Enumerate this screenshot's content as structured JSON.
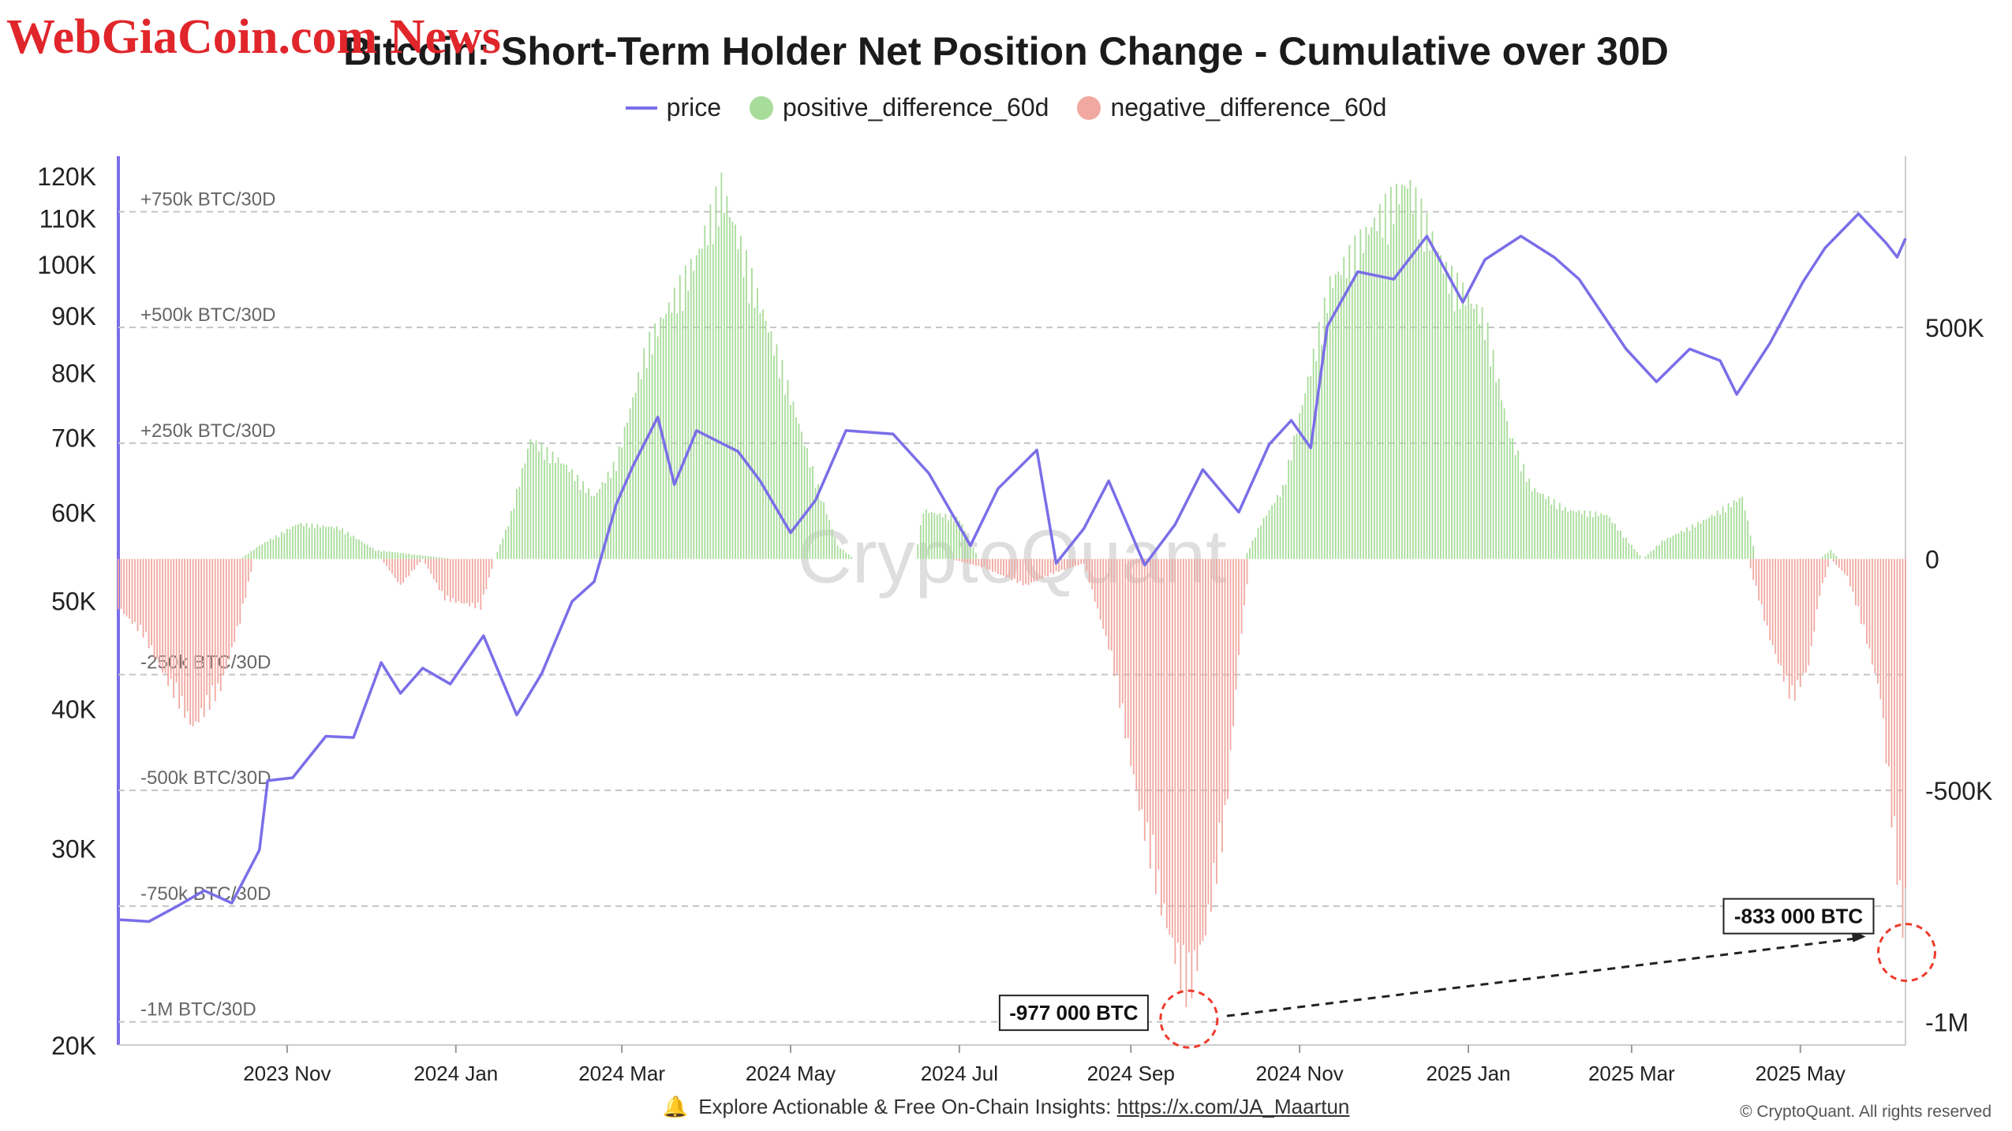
{
  "watermark": "WebGiaCoin.com News",
  "title": "Bitcoin: Short-Term Holder Net Position Change - Cumulative over 30D",
  "legend": [
    {
      "name": "price",
      "color": "#7b6ee8",
      "kind": "line"
    },
    {
      "name": "positive_difference_60d",
      "color": "#a8dc9a",
      "kind": "dot"
    },
    {
      "name": "negative_difference_60d",
      "color": "#f0a8a0",
      "kind": "dot"
    }
  ],
  "footer": {
    "icon": "bell-icon",
    "text": "Explore Actionable & Free On-Chain Insights:",
    "link": "https://x.com/JA_Maartun"
  },
  "copyright": "© CryptoQuant. All rights reserved",
  "chart_data": {
    "type": "bar",
    "watermark_text": "CryptoQuant",
    "x_ticks": [
      "2023 Nov",
      "2024 Jan",
      "2024 Mar",
      "2024 May",
      "2024 Jul",
      "2024 Sep",
      "2024 Nov",
      "2025 Jan",
      "2025 Mar",
      "2025 May"
    ],
    "x_range": [
      "2023-09-01",
      "2025-06-08"
    ],
    "y_left": {
      "scale": "log",
      "range": [
        20000,
        125000
      ],
      "ticks": [
        "20K",
        "30K",
        "40K",
        "50K",
        "60K",
        "70K",
        "80K",
        "90K",
        "100K",
        "110K",
        "120K"
      ],
      "tick_values": [
        20000,
        30000,
        40000,
        50000,
        60000,
        70000,
        80000,
        90000,
        100000,
        110000,
        120000
      ]
    },
    "y_right": {
      "range": [
        -1050000,
        870000
      ],
      "ticks": [
        "500K",
        "0",
        "-500K",
        "-1M"
      ],
      "tick_values": [
        500000,
        0,
        -500000,
        -1000000
      ]
    },
    "reference_lines": [
      {
        "value": 750000,
        "label": "+750k BTC/30D"
      },
      {
        "value": 500000,
        "label": "+500k BTC/30D"
      },
      {
        "value": 250000,
        "label": "+250k BTC/30D"
      },
      {
        "value": -250000,
        "label": "-250k BTC/30D"
      },
      {
        "value": -500000,
        "label": "-500k BTC/30D"
      },
      {
        "value": -750000,
        "label": "-750k BTC/30D"
      },
      {
        "value": -1000000,
        "label": "-1M BTC/30D"
      }
    ],
    "annotations": [
      {
        "label": "-977 000 BTC",
        "date": "2024-09-22",
        "value": -977000
      },
      {
        "label": "-833 000 BTC",
        "date": "2025-06-07",
        "value": -833000
      }
    ],
    "series": [
      {
        "name": "price",
        "axis": "left",
        "points": [
          [
            "2023-09-01",
            25900
          ],
          [
            "2023-09-12",
            25800
          ],
          [
            "2023-09-22",
            26600
          ],
          [
            "2023-10-02",
            27500
          ],
          [
            "2023-10-12",
            26800
          ],
          [
            "2023-10-22",
            29900
          ],
          [
            "2023-10-25",
            34500
          ],
          [
            "2023-11-03",
            34700
          ],
          [
            "2023-11-15",
            37800
          ],
          [
            "2023-11-25",
            37700
          ],
          [
            "2023-12-05",
            44000
          ],
          [
            "2023-12-12",
            41300
          ],
          [
            "2023-12-20",
            43500
          ],
          [
            "2023-12-30",
            42100
          ],
          [
            "2024-01-11",
            46500
          ],
          [
            "2024-01-23",
            39500
          ],
          [
            "2024-02-01",
            43000
          ],
          [
            "2024-02-12",
            49900
          ],
          [
            "2024-02-20",
            52000
          ],
          [
            "2024-02-28",
            61000
          ],
          [
            "2024-03-05",
            66000
          ],
          [
            "2024-03-14",
            73000
          ],
          [
            "2024-03-20",
            63500
          ],
          [
            "2024-03-28",
            71000
          ],
          [
            "2024-04-12",
            68000
          ],
          [
            "2024-04-20",
            64000
          ],
          [
            "2024-05-01",
            57500
          ],
          [
            "2024-05-10",
            61500
          ],
          [
            "2024-05-21",
            71000
          ],
          [
            "2024-06-07",
            70500
          ],
          [
            "2024-06-20",
            65000
          ],
          [
            "2024-07-05",
            56000
          ],
          [
            "2024-07-15",
            63000
          ],
          [
            "2024-07-29",
            68200
          ],
          [
            "2024-08-05",
            54000
          ],
          [
            "2024-08-15",
            58000
          ],
          [
            "2024-08-24",
            64000
          ],
          [
            "2024-09-06",
            53800
          ],
          [
            "2024-09-17",
            58500
          ],
          [
            "2024-09-27",
            65500
          ],
          [
            "2024-10-10",
            60000
          ],
          [
            "2024-10-21",
            69000
          ],
          [
            "2024-10-29",
            72500
          ],
          [
            "2024-11-05",
            68500
          ],
          [
            "2024-11-11",
            88000
          ],
          [
            "2024-11-22",
            98500
          ],
          [
            "2024-12-05",
            97000
          ],
          [
            "2024-12-17",
            106000
          ],
          [
            "2024-12-30",
            92500
          ],
          [
            "2025-01-07",
            101000
          ],
          [
            "2025-01-20",
            106000
          ],
          [
            "2025-02-01",
            101500
          ],
          [
            "2025-02-10",
            97000
          ],
          [
            "2025-02-27",
            84000
          ],
          [
            "2025-03-10",
            78500
          ],
          [
            "2025-03-22",
            84000
          ],
          [
            "2025-04-02",
            82000
          ],
          [
            "2025-04-08",
            76500
          ],
          [
            "2025-04-20",
            85000
          ],
          [
            "2025-05-02",
            96500
          ],
          [
            "2025-05-10",
            103500
          ],
          [
            "2025-05-22",
            111000
          ],
          [
            "2025-06-01",
            104500
          ],
          [
            "2025-06-05",
            101500
          ],
          [
            "2025-06-08",
            105500
          ]
        ]
      },
      {
        "name": "positive_difference_60d",
        "axis": "right",
        "points": [
          [
            "2023-09-01",
            0
          ],
          [
            "2023-10-15",
            0
          ],
          [
            "2023-10-22",
            30000
          ],
          [
            "2023-11-05",
            80000
          ],
          [
            "2023-11-20",
            70000
          ],
          [
            "2023-12-03",
            20000
          ],
          [
            "2023-12-31",
            0
          ],
          [
            "2024-01-15",
            0
          ],
          [
            "2024-01-20",
            80000
          ],
          [
            "2024-01-28",
            270000
          ],
          [
            "2024-02-10",
            210000
          ],
          [
            "2024-02-20",
            140000
          ],
          [
            "2024-02-28",
            220000
          ],
          [
            "2024-03-10",
            480000
          ],
          [
            "2024-03-28",
            680000
          ],
          [
            "2024-04-06",
            840000
          ],
          [
            "2024-04-18",
            610000
          ],
          [
            "2024-04-28",
            430000
          ],
          [
            "2024-05-10",
            180000
          ],
          [
            "2024-05-18",
            30000
          ],
          [
            "2024-05-24",
            0
          ],
          [
            "2024-06-15",
            0
          ],
          [
            "2024-06-18",
            110000
          ],
          [
            "2024-07-01",
            90000
          ],
          [
            "2024-07-08",
            0
          ],
          [
            "2024-10-12",
            0
          ],
          [
            "2024-10-18",
            80000
          ],
          [
            "2024-10-26",
            160000
          ],
          [
            "2024-11-02",
            350000
          ],
          [
            "2024-11-12",
            620000
          ],
          [
            "2024-11-28",
            760000
          ],
          [
            "2024-12-10",
            850000
          ],
          [
            "2024-12-24",
            650000
          ],
          [
            "2025-01-07",
            540000
          ],
          [
            "2025-01-16",
            280000
          ],
          [
            "2025-01-24",
            160000
          ],
          [
            "2025-02-06",
            110000
          ],
          [
            "2025-02-20",
            100000
          ],
          [
            "2025-03-05",
            0
          ],
          [
            "2025-03-12",
            40000
          ],
          [
            "2025-03-28",
            90000
          ],
          [
            "2025-04-10",
            140000
          ],
          [
            "2025-04-15",
            0
          ],
          [
            "2025-05-08",
            0
          ],
          [
            "2025-05-12",
            20000
          ],
          [
            "2025-05-15",
            0
          ],
          [
            "2025-06-08",
            0
          ]
        ]
      },
      {
        "name": "negative_difference_60d",
        "axis": "right",
        "points": [
          [
            "2023-09-01",
            -110000
          ],
          [
            "2023-09-10",
            -170000
          ],
          [
            "2023-09-20",
            -290000
          ],
          [
            "2023-09-28",
            -380000
          ],
          [
            "2023-10-08",
            -290000
          ],
          [
            "2023-10-15",
            -140000
          ],
          [
            "2023-10-20",
            0
          ],
          [
            "2023-12-05",
            0
          ],
          [
            "2023-12-12",
            -60000
          ],
          [
            "2023-12-20",
            0
          ],
          [
            "2023-12-28",
            -90000
          ],
          [
            "2024-01-10",
            -110000
          ],
          [
            "2024-01-15",
            0
          ],
          [
            "2024-06-28",
            0
          ],
          [
            "2024-07-10",
            -20000
          ],
          [
            "2024-07-25",
            -60000
          ],
          [
            "2024-08-05",
            -30000
          ],
          [
            "2024-08-15",
            -10000
          ],
          [
            "2024-08-25",
            -220000
          ],
          [
            "2024-09-04",
            -560000
          ],
          [
            "2024-09-12",
            -780000
          ],
          [
            "2024-09-20",
            -960000
          ],
          [
            "2024-09-22",
            -977000
          ],
          [
            "2024-09-28",
            -840000
          ],
          [
            "2024-10-05",
            -600000
          ],
          [
            "2024-10-10",
            -220000
          ],
          [
            "2024-10-14",
            0
          ],
          [
            "2025-04-12",
            0
          ],
          [
            "2025-04-20",
            -180000
          ],
          [
            "2025-04-28",
            -320000
          ],
          [
            "2025-05-04",
            -240000
          ],
          [
            "2025-05-08",
            -80000
          ],
          [
            "2025-05-12",
            0
          ],
          [
            "2025-05-18",
            -40000
          ],
          [
            "2025-05-24",
            -160000
          ],
          [
            "2025-05-30",
            -310000
          ],
          [
            "2025-06-03",
            -580000
          ],
          [
            "2025-06-07",
            -833000
          ],
          [
            "2025-06-08",
            -760000
          ]
        ]
      }
    ]
  }
}
